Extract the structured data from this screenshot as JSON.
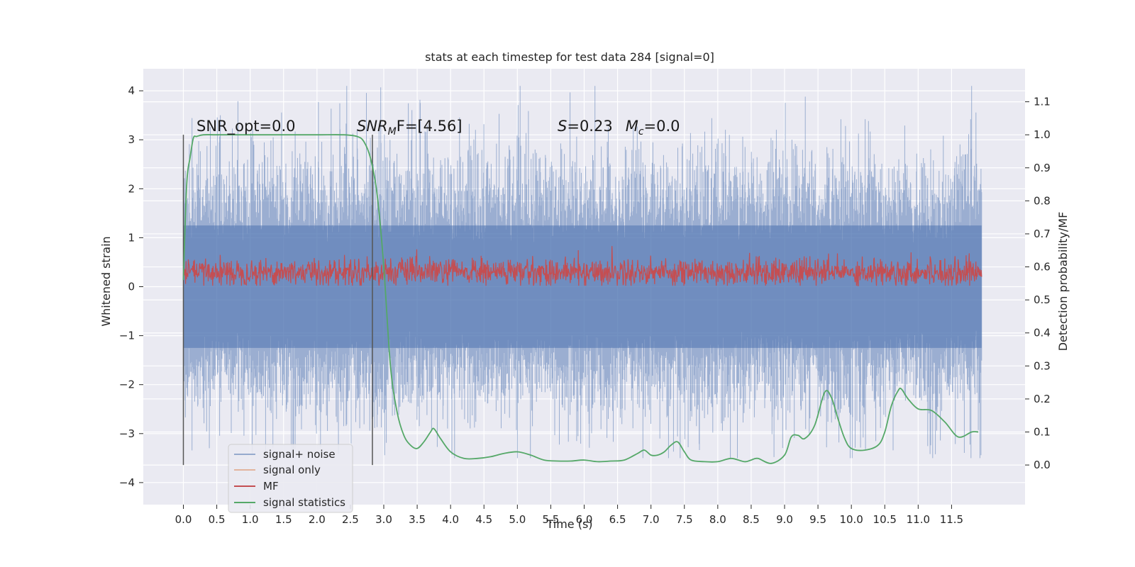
{
  "chart_data": {
    "type": "line",
    "title": "stats at each timestep for test data 284 [signal=0]",
    "xlabel": "Time (s)",
    "ylabel": "Whitened strain",
    "ylabel_right": "Detection probability/MF",
    "xlim": [
      -0.6,
      12.6
    ],
    "ylim": [
      -4.45,
      4.45
    ],
    "ylim_right": [
      -0.12,
      1.2
    ],
    "x_ticks": [
      "0.0",
      "0.5",
      "1.0",
      "1.5",
      "2.0",
      "2.5",
      "3.0",
      "3.5",
      "4.0",
      "4.5",
      "5.0",
      "5.5",
      "6.0",
      "6.5",
      "7.0",
      "7.5",
      "8.0",
      "8.5",
      "9.0",
      "9.5",
      "10.0",
      "10.5",
      "11.0",
      "11.5"
    ],
    "y_ticks": [
      "4",
      "3",
      "2",
      "1",
      "0",
      "−1",
      "−2",
      "−3",
      "−4"
    ],
    "y_ticks_right": [
      "1.1",
      "1.0",
      "0.9",
      "0.8",
      "0.7",
      "0.6",
      "0.5",
      "0.4",
      "0.3",
      "0.2",
      "0.1",
      "0.0"
    ],
    "grid": true,
    "legend_position": "lower-left",
    "annotations": {
      "snr_opt": "SNR_opt=0.0",
      "snr_mf_var": "SNR",
      "snr_mf_sub": "M",
      "snr_mf_rest": "F=[4.56]",
      "s_var": "S",
      "s_rest": "=0.23",
      "mc_var": "M",
      "mc_sub": "c",
      "mc_rest": "=0.0"
    },
    "vertical_markers": [
      0.0,
      2.83
    ],
    "series": [
      {
        "name": "signal+ noise",
        "color": "#4c72b0",
        "axis": "left",
        "x_range": [
          0.0,
          11.95
        ],
        "amplitude_range": [
          -3.5,
          4.1
        ]
      },
      {
        "name": "signal only",
        "color": "#dd8452",
        "axis": "left",
        "values": []
      },
      {
        "name": "MF",
        "color": "#c44e52",
        "axis": "left",
        "x_range": [
          0.0,
          11.95
        ],
        "amplitude_range": [
          0.0,
          1.0
        ]
      },
      {
        "name": "signal statistics",
        "color": "#55a868",
        "axis": "right",
        "x": [
          0.0,
          0.05,
          0.1,
          0.15,
          0.2,
          0.3,
          0.5,
          1.0,
          1.5,
          2.0,
          2.4,
          2.6,
          2.7,
          2.8,
          2.9,
          3.0,
          3.1,
          3.2,
          3.3,
          3.4,
          3.5,
          3.6,
          3.7,
          3.75,
          3.85,
          4.0,
          4.2,
          4.4,
          4.6,
          4.8,
          5.0,
          5.2,
          5.4,
          5.6,
          5.8,
          6.0,
          6.2,
          6.4,
          6.6,
          6.8,
          6.9,
          7.0,
          7.1,
          7.2,
          7.3,
          7.4,
          7.5,
          7.6,
          7.8,
          8.0,
          8.2,
          8.4,
          8.5,
          8.6,
          8.8,
          9.0,
          9.1,
          9.2,
          9.3,
          9.45,
          9.6,
          9.7,
          9.8,
          9.9,
          10.0,
          10.2,
          10.4,
          10.5,
          10.6,
          10.7,
          10.75,
          10.85,
          11.0,
          11.2,
          11.4,
          11.6,
          11.8,
          11.9
        ],
        "values": [
          0.56,
          0.85,
          0.93,
          0.99,
          0.995,
          1.0,
          1.0,
          1.0,
          1.0,
          1.0,
          1.0,
          0.995,
          0.98,
          0.93,
          0.82,
          0.6,
          0.3,
          0.16,
          0.09,
          0.06,
          0.05,
          0.07,
          0.1,
          0.11,
          0.08,
          0.04,
          0.02,
          0.02,
          0.025,
          0.035,
          0.04,
          0.03,
          0.015,
          0.012,
          0.012,
          0.015,
          0.01,
          0.012,
          0.015,
          0.035,
          0.045,
          0.03,
          0.03,
          0.04,
          0.06,
          0.07,
          0.04,
          0.015,
          0.01,
          0.01,
          0.02,
          0.01,
          0.015,
          0.02,
          0.005,
          0.03,
          0.085,
          0.09,
          0.08,
          0.12,
          0.22,
          0.205,
          0.14,
          0.08,
          0.05,
          0.045,
          0.06,
          0.1,
          0.18,
          0.225,
          0.23,
          0.2,
          0.17,
          0.165,
          0.13,
          0.085,
          0.1,
          0.1
        ]
      }
    ]
  }
}
